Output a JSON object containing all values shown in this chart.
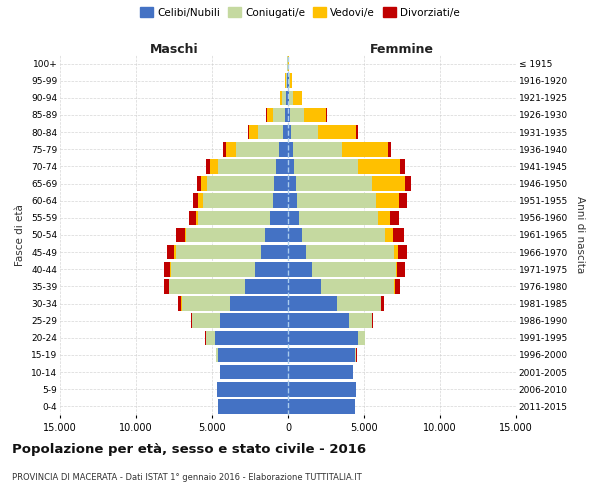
{
  "age_groups": [
    "0-4",
    "5-9",
    "10-14",
    "15-19",
    "20-24",
    "25-29",
    "30-34",
    "35-39",
    "40-44",
    "45-49",
    "50-54",
    "55-59",
    "60-64",
    "65-69",
    "70-74",
    "75-79",
    "80-84",
    "85-89",
    "90-94",
    "95-99",
    "100+"
  ],
  "birth_years": [
    "2011-2015",
    "2006-2010",
    "2001-2005",
    "1996-2000",
    "1991-1995",
    "1986-1990",
    "1981-1985",
    "1976-1980",
    "1971-1975",
    "1966-1970",
    "1961-1965",
    "1956-1960",
    "1951-1955",
    "1946-1950",
    "1941-1945",
    "1936-1940",
    "1931-1935",
    "1926-1930",
    "1921-1925",
    "1916-1920",
    "≤ 1915"
  ],
  "male_celibe": [
    4600,
    4700,
    4500,
    4600,
    4800,
    4500,
    3800,
    2800,
    2200,
    1800,
    1500,
    1200,
    1000,
    900,
    800,
    600,
    350,
    200,
    120,
    80,
    30
  ],
  "male_coniugato": [
    0,
    0,
    0,
    150,
    600,
    1800,
    3200,
    5000,
    5500,
    5600,
    5200,
    4700,
    4600,
    4400,
    3800,
    2800,
    1600,
    800,
    250,
    60,
    10
  ],
  "male_vedovo": [
    0,
    0,
    0,
    0,
    5,
    10,
    20,
    30,
    50,
    80,
    100,
    150,
    300,
    400,
    500,
    700,
    600,
    400,
    150,
    30,
    5
  ],
  "male_divorziato": [
    0,
    0,
    0,
    10,
    30,
    100,
    200,
    350,
    400,
    500,
    550,
    450,
    350,
    300,
    280,
    200,
    80,
    30,
    15,
    5,
    0
  ],
  "female_celibe": [
    4400,
    4500,
    4300,
    4400,
    4600,
    4000,
    3200,
    2200,
    1600,
    1200,
    900,
    700,
    600,
    500,
    400,
    350,
    200,
    120,
    80,
    50,
    20
  ],
  "female_coniugato": [
    0,
    0,
    0,
    100,
    450,
    1500,
    2900,
    4800,
    5500,
    5800,
    5500,
    5200,
    5200,
    5000,
    4200,
    3200,
    1800,
    900,
    250,
    50,
    8
  ],
  "female_vedovo": [
    0,
    0,
    0,
    0,
    10,
    20,
    30,
    50,
    100,
    250,
    500,
    800,
    1500,
    2200,
    2800,
    3000,
    2500,
    1500,
    600,
    150,
    20
  ],
  "female_divorziato": [
    0,
    0,
    0,
    10,
    30,
    100,
    200,
    350,
    500,
    600,
    700,
    600,
    500,
    400,
    300,
    200,
    100,
    50,
    20,
    5,
    0
  ],
  "colors": {
    "celibe": "#4472C4",
    "coniugato": "#C5D9A0",
    "vedovo": "#FFC000",
    "divorziato": "#C00000"
  },
  "xlim": 15000,
  "title": "Popolazione per età, sesso e stato civile - 2016",
  "subtitle": "PROVINCIA DI MACERATA - Dati ISTAT 1° gennaio 2016 - Elaborazione TUTTITALIA.IT",
  "xlabel_left": "Maschi",
  "xlabel_right": "Femmine",
  "ylabel_left": "Fasce di età",
  "ylabel_right": "Anni di nascita",
  "legend_labels": [
    "Celibi/Nubili",
    "Coniugati/e",
    "Vedovi/e",
    "Divorziati/e"
  ],
  "xticks": [
    -15000,
    -10000,
    -5000,
    0,
    5000,
    10000,
    15000
  ],
  "xtick_labels": [
    "15.000",
    "10.000",
    "5.000",
    "0",
    "5.000",
    "10.000",
    "15.000"
  ]
}
